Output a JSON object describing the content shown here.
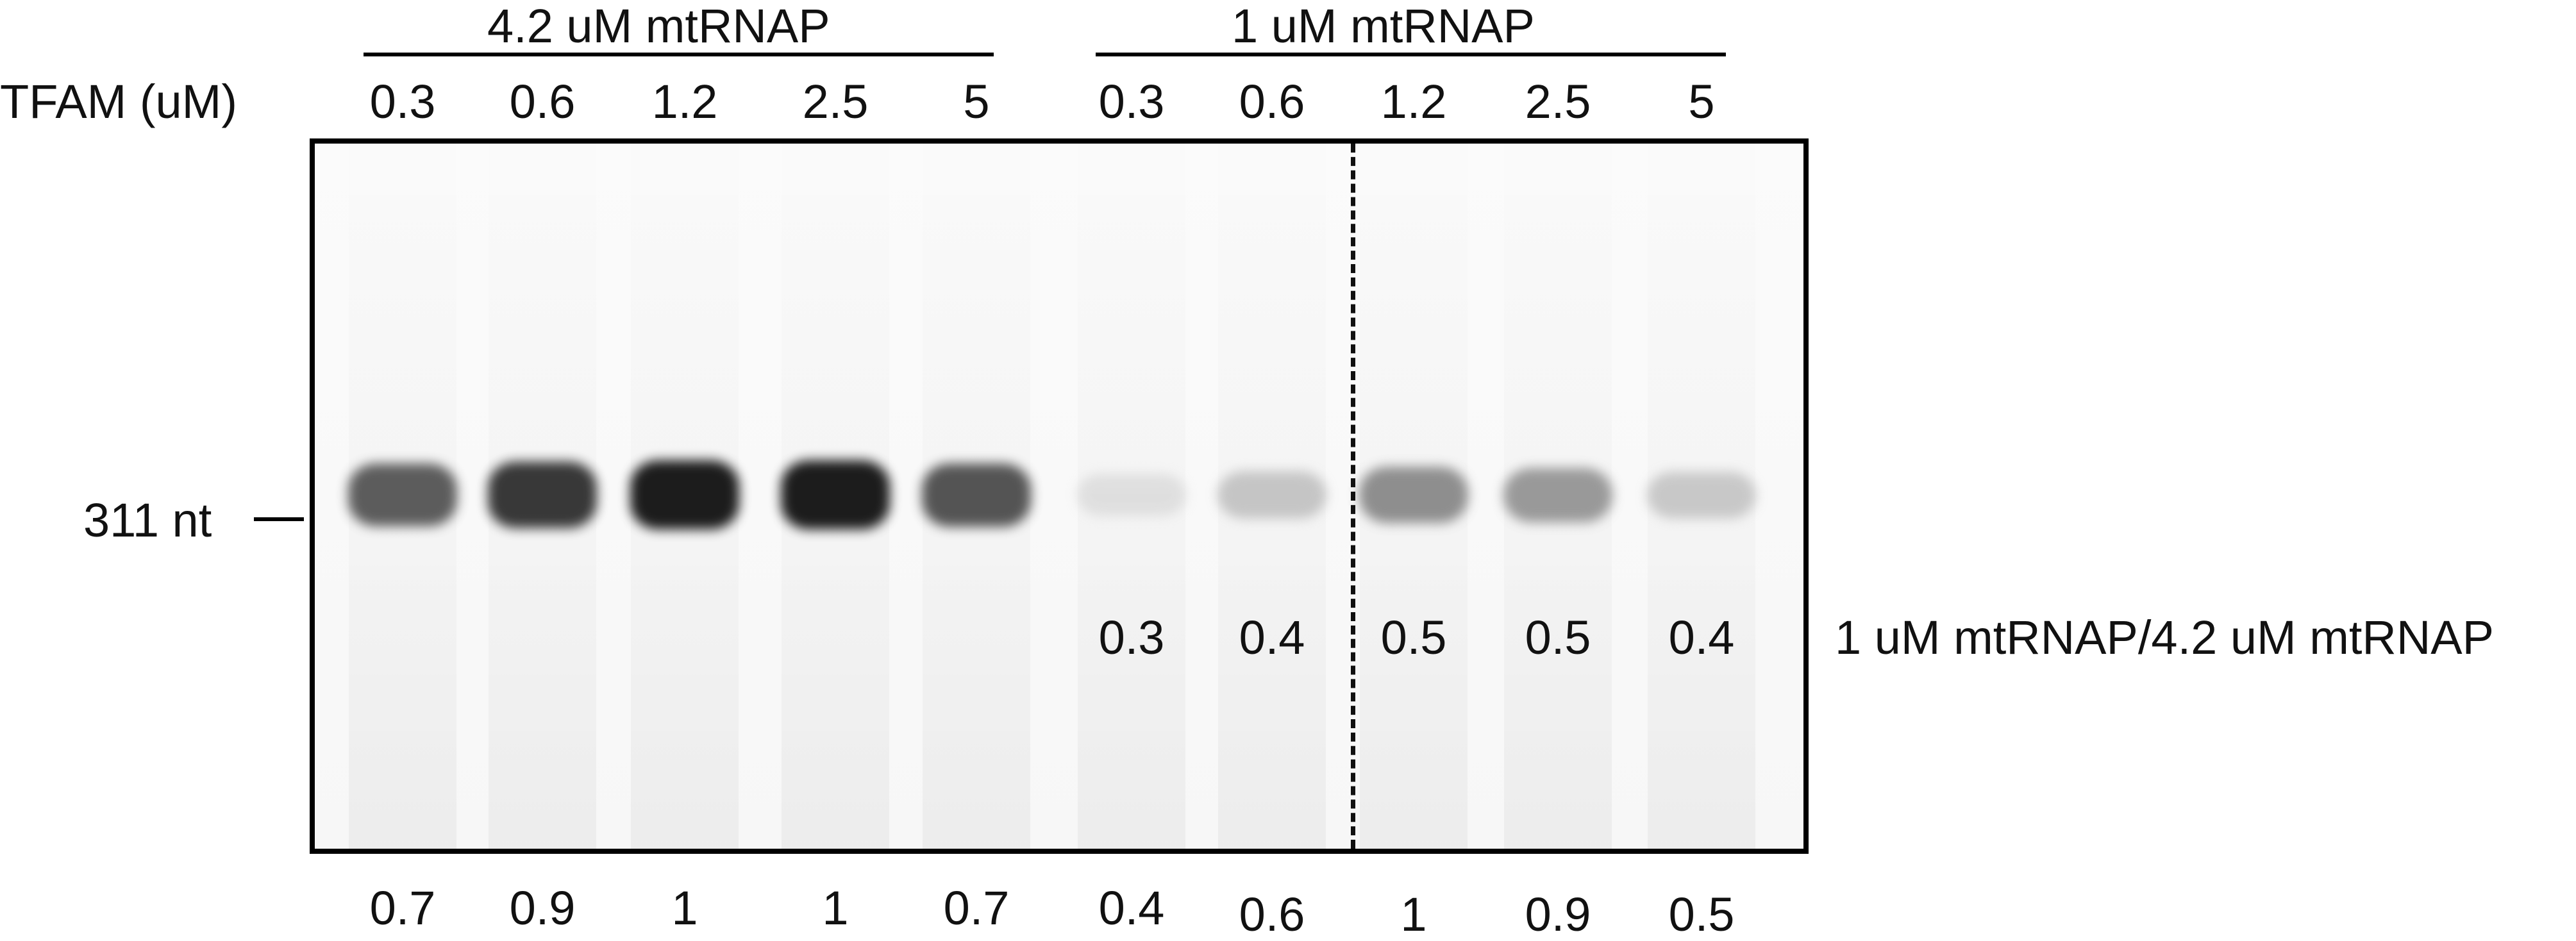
{
  "groups": [
    {
      "label": "4.2 uM mtRNAP"
    },
    {
      "label": "1 uM mtRNAP"
    }
  ],
  "tfam_axis_label": "TFAM (uM)",
  "lanes": [
    {
      "tfam": "0.3",
      "relative": "0.7",
      "band_intensity": 0.75
    },
    {
      "tfam": "0.6",
      "relative": "0.9",
      "band_intensity": 0.88
    },
    {
      "tfam": "1.2",
      "relative": "1",
      "band_intensity": 0.97
    },
    {
      "tfam": "2.5",
      "relative": "1",
      "band_intensity": 0.97
    },
    {
      "tfam": "5",
      "relative": "0.7",
      "band_intensity": 0.78
    },
    {
      "tfam": "0.3",
      "relative": "0.4",
      "ratio": "0.3",
      "band_intensity": 0.12
    },
    {
      "tfam": "0.6",
      "relative": "0.6",
      "ratio": "0.4",
      "band_intensity": 0.28
    },
    {
      "tfam": "1.2",
      "relative": "1",
      "ratio": "0.5",
      "band_intensity": 0.55
    },
    {
      "tfam": "2.5",
      "relative": "0.9",
      "ratio": "0.5",
      "band_intensity": 0.5
    },
    {
      "tfam": "5",
      "relative": "0.5",
      "ratio": "0.4",
      "band_intensity": 0.26
    }
  ],
  "marker_label": "311 nt",
  "ratio_row_label": "1 uM mtRNAP/4.2 uM mtRNAP"
}
